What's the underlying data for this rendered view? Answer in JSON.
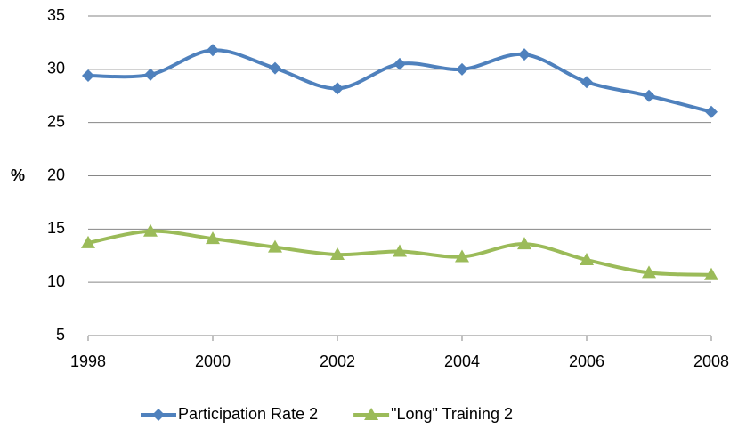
{
  "chart_data": {
    "type": "line",
    "y_label": "%",
    "x": [
      1998,
      1999,
      2000,
      2001,
      2002,
      2003,
      2004,
      2005,
      2006,
      2007,
      2008
    ],
    "series": [
      {
        "name": "Participation Rate 2",
        "color": "#4f81bd",
        "marker": "diamond",
        "values": [
          29.4,
          29.5,
          31.8,
          30.1,
          28.2,
          30.5,
          30.0,
          31.4,
          28.8,
          27.5,
          26.0
        ]
      },
      {
        "name": "\"Long\" Training 2",
        "color": "#9bbb59",
        "marker": "triangle",
        "values": [
          13.7,
          14.8,
          14.1,
          13.3,
          12.6,
          12.9,
          12.4,
          13.6,
          12.1,
          10.9,
          10.7
        ]
      }
    ],
    "xlim": [
      1998,
      2008
    ],
    "xticks": [
      1998,
      2000,
      2002,
      2004,
      2006,
      2008
    ],
    "ylim": [
      5,
      35
    ],
    "yticks": [
      5,
      10,
      15,
      20,
      25,
      30,
      35
    ],
    "grid": true,
    "smooth": true,
    "legend": "bottom"
  }
}
